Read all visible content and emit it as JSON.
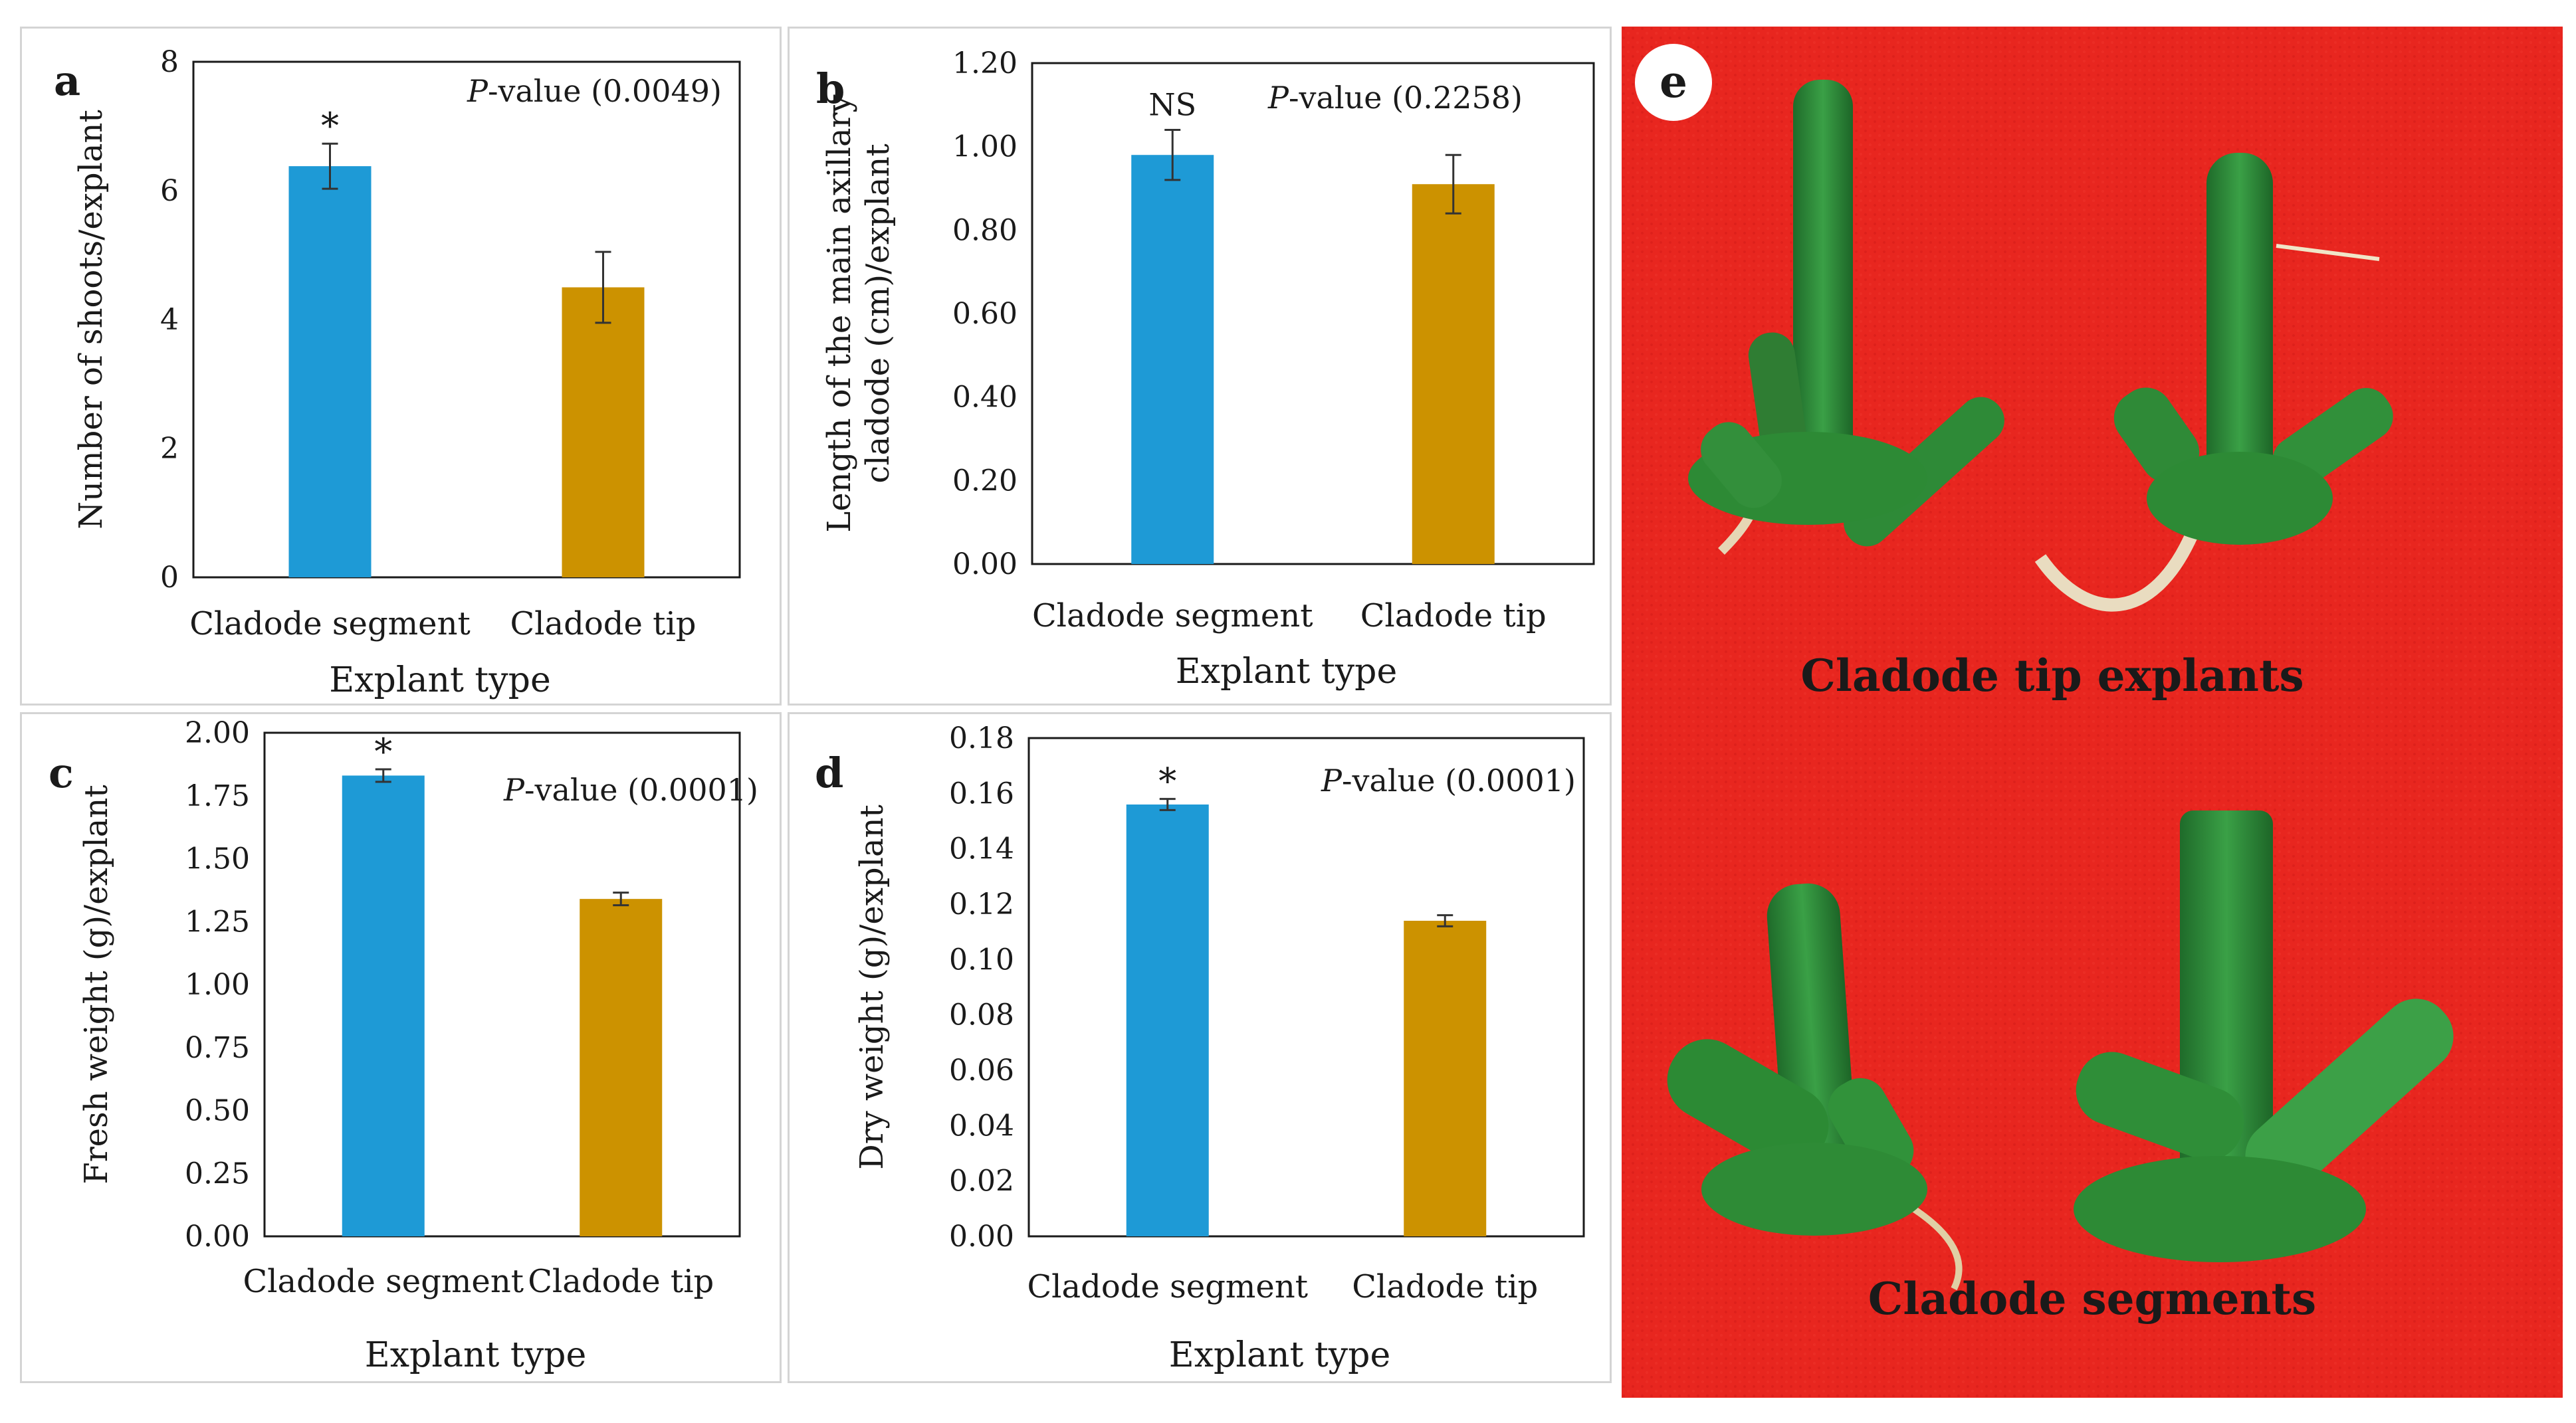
{
  "chart_data": [
    {
      "panel": "a",
      "type": "bar",
      "categories": [
        "Cladode segment",
        "Cladode tip"
      ],
      "values": [
        6.38,
        4.5
      ],
      "errors": [
        0.35,
        0.55
      ],
      "significance": [
        "*",
        ""
      ],
      "pvalue_prefix": "P",
      "pvalue_rest": "-value (0.0049)",
      "xlabel": "Explant type",
      "ylabel": [
        "Number of shoots/explant"
      ],
      "ylim": [
        0,
        8
      ],
      "ticks": [
        "0",
        "2",
        "4",
        "6",
        "8"
      ],
      "colors": [
        "#1e9ad6",
        "#cc9200"
      ]
    },
    {
      "panel": "b",
      "type": "bar",
      "categories": [
        "Cladode segment",
        "Cladode tip"
      ],
      "values": [
        0.98,
        0.91
      ],
      "errors": [
        0.06,
        0.07
      ],
      "significance": [
        "NS",
        ""
      ],
      "pvalue_prefix": "P",
      "pvalue_rest": "-value (0.2258)",
      "xlabel": "Explant type",
      "ylabel": [
        "Length of the main axillary",
        "cladode (cm)/explant"
      ],
      "ylim": [
        0,
        1.2
      ],
      "ticks": [
        "0.00",
        "0.20",
        "0.40",
        "0.60",
        "0.80",
        "1.00",
        "1.20"
      ],
      "colors": [
        "#1e9ad6",
        "#cc9200"
      ]
    },
    {
      "panel": "c",
      "type": "bar",
      "categories": [
        "Cladode segment",
        "Cladode tip"
      ],
      "values": [
        1.83,
        1.34
      ],
      "errors": [
        0.025,
        0.025
      ],
      "significance": [
        "*",
        ""
      ],
      "pvalue_prefix": "P",
      "pvalue_rest": "-value (0.0001)",
      "xlabel": "Explant type",
      "ylabel": [
        "Fresh weight (g)/explant"
      ],
      "ylim": [
        0,
        2
      ],
      "ticks": [
        "0.00",
        "0.25",
        "0.50",
        "0.75",
        "1.00",
        "1.25",
        "1.50",
        "1.75",
        "2.00"
      ],
      "colors": [
        "#1e9ad6",
        "#cc9200"
      ]
    },
    {
      "panel": "d",
      "type": "bar",
      "categories": [
        "Cladode segment",
        "Cladode tip"
      ],
      "values": [
        0.156,
        0.114
      ],
      "errors": [
        0.002,
        0.002
      ],
      "significance": [
        "*",
        ""
      ],
      "pvalue_prefix": "P",
      "pvalue_rest": "-value (0.0001)",
      "xlabel": "Explant type",
      "ylabel": [
        "Dry weight (g)/explant"
      ],
      "ylim": [
        0,
        0.18
      ],
      "ticks": [
        "0.00",
        "0.02",
        "0.04",
        "0.06",
        "0.08",
        "0.10",
        "0.12",
        "0.14",
        "0.16",
        "0.18"
      ],
      "colors": [
        "#1e9ad6",
        "#cc9200"
      ]
    }
  ],
  "photo": {
    "label": "e",
    "top_caption": "Cladode tip explants",
    "bottom_caption": "Cladode segments",
    "background": "#e8261f"
  }
}
